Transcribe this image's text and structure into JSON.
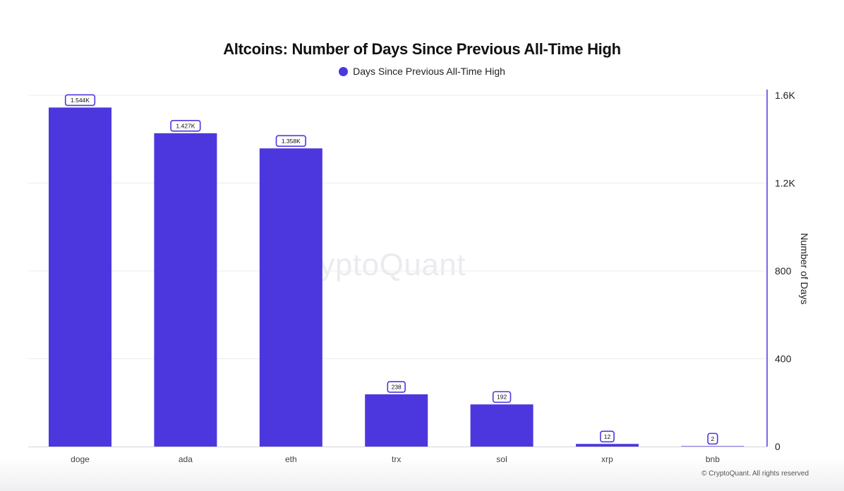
{
  "chart_data": {
    "type": "bar",
    "title": "Altcoins: Number of Days Since Previous All-Time High",
    "categories": [
      "doge",
      "ada",
      "eth",
      "trx",
      "sol",
      "xrp",
      "bnb"
    ],
    "series": [
      {
        "name": "Days Since Previous All-Time High",
        "values": [
          1544,
          1427,
          1358,
          238,
          192,
          12,
          2
        ],
        "data_labels": [
          "1.544K",
          "1.427K",
          "1.358K",
          "238",
          "192",
          "12",
          "2"
        ]
      }
    ],
    "ylabel": "Number of Days",
    "xlabel": "",
    "ylim": [
      0,
      1600
    ],
    "yticks": [
      0,
      400,
      800,
      1200,
      1600
    ],
    "ytick_labels": [
      "0",
      "400",
      "800",
      "1.2K",
      "1.6K"
    ],
    "y_axis_side": "right",
    "grid": true,
    "legend_position": "top-center",
    "bar_color": "#4c37de"
  },
  "watermark": "CryptoQuant",
  "copyright": "© CryptoQuant. All rights reserved"
}
